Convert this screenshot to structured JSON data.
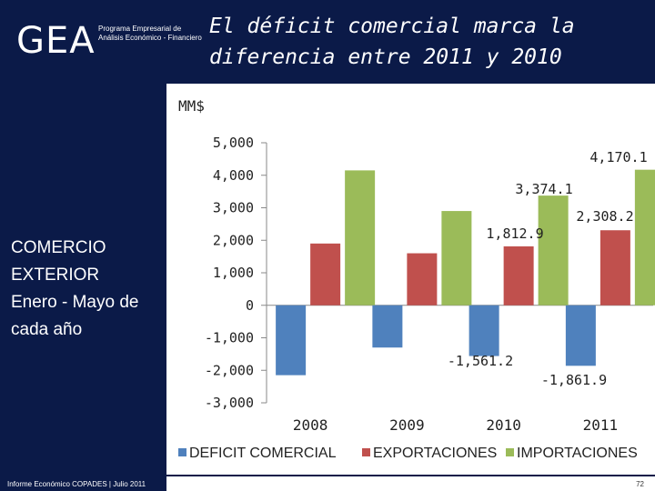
{
  "header": {
    "logo": "GEA",
    "logo_subtitle": "Programa Empresarial de Análisis Económico - Financiero",
    "title_line1": "El déficit comercial marca la",
    "title_line2": "diferencia entre 2011 y 2010"
  },
  "sidebar": {
    "line1": "COMERCIO",
    "line2": "EXTERIOR",
    "line3": "Enero - Mayo de",
    "line4": "cada año"
  },
  "footer": {
    "report": "Informe Económico COPADES  |  Julio 2011",
    "page": "72"
  },
  "colors": {
    "navy": "#0b1a48",
    "deficit": "#4f81bd",
    "exports": "#c0504d",
    "imports": "#9bbb59"
  },
  "chart_data": {
    "type": "bar",
    "unit_label": "MM$",
    "categories": [
      "2008",
      "2009",
      "2010",
      "2011"
    ],
    "series": [
      {
        "name": "DEFICIT COMERCIAL",
        "color": "#4f81bd",
        "values": [
          -2150,
          -1300,
          -1561.2,
          -1861.9
        ]
      },
      {
        "name": "EXPORTACIONES",
        "color": "#c0504d",
        "values": [
          1900,
          1600,
          1812.9,
          2308.2
        ]
      },
      {
        "name": "IMPORTACIONES",
        "color": "#9bbb59",
        "values": [
          4150,
          2900,
          3374.1,
          4170.1
        ]
      }
    ],
    "ylim": [
      -3000,
      5000
    ],
    "yticks": [
      5000,
      4000,
      3000,
      2000,
      1000,
      0,
      -1000,
      -2000,
      -3000
    ],
    "ytick_labels": [
      "5,000",
      "4,000",
      "3,000",
      "2,000",
      "1,000",
      "0",
      "-1,000",
      "-2,000",
      "-3,000"
    ],
    "data_labels": [
      {
        "text": "-1,561.2",
        "series": 0,
        "cat": 2
      },
      {
        "text": "-1,861.9",
        "series": 0,
        "cat": 3
      },
      {
        "text": "1,812.9",
        "series": 1,
        "cat": 2
      },
      {
        "text": "2,308.2",
        "series": 1,
        "cat": 3
      },
      {
        "text": "3,374.1",
        "series": 2,
        "cat": 2
      },
      {
        "text": "4,170.1",
        "series": 2,
        "cat": 3
      }
    ],
    "legend_position": "bottom"
  }
}
